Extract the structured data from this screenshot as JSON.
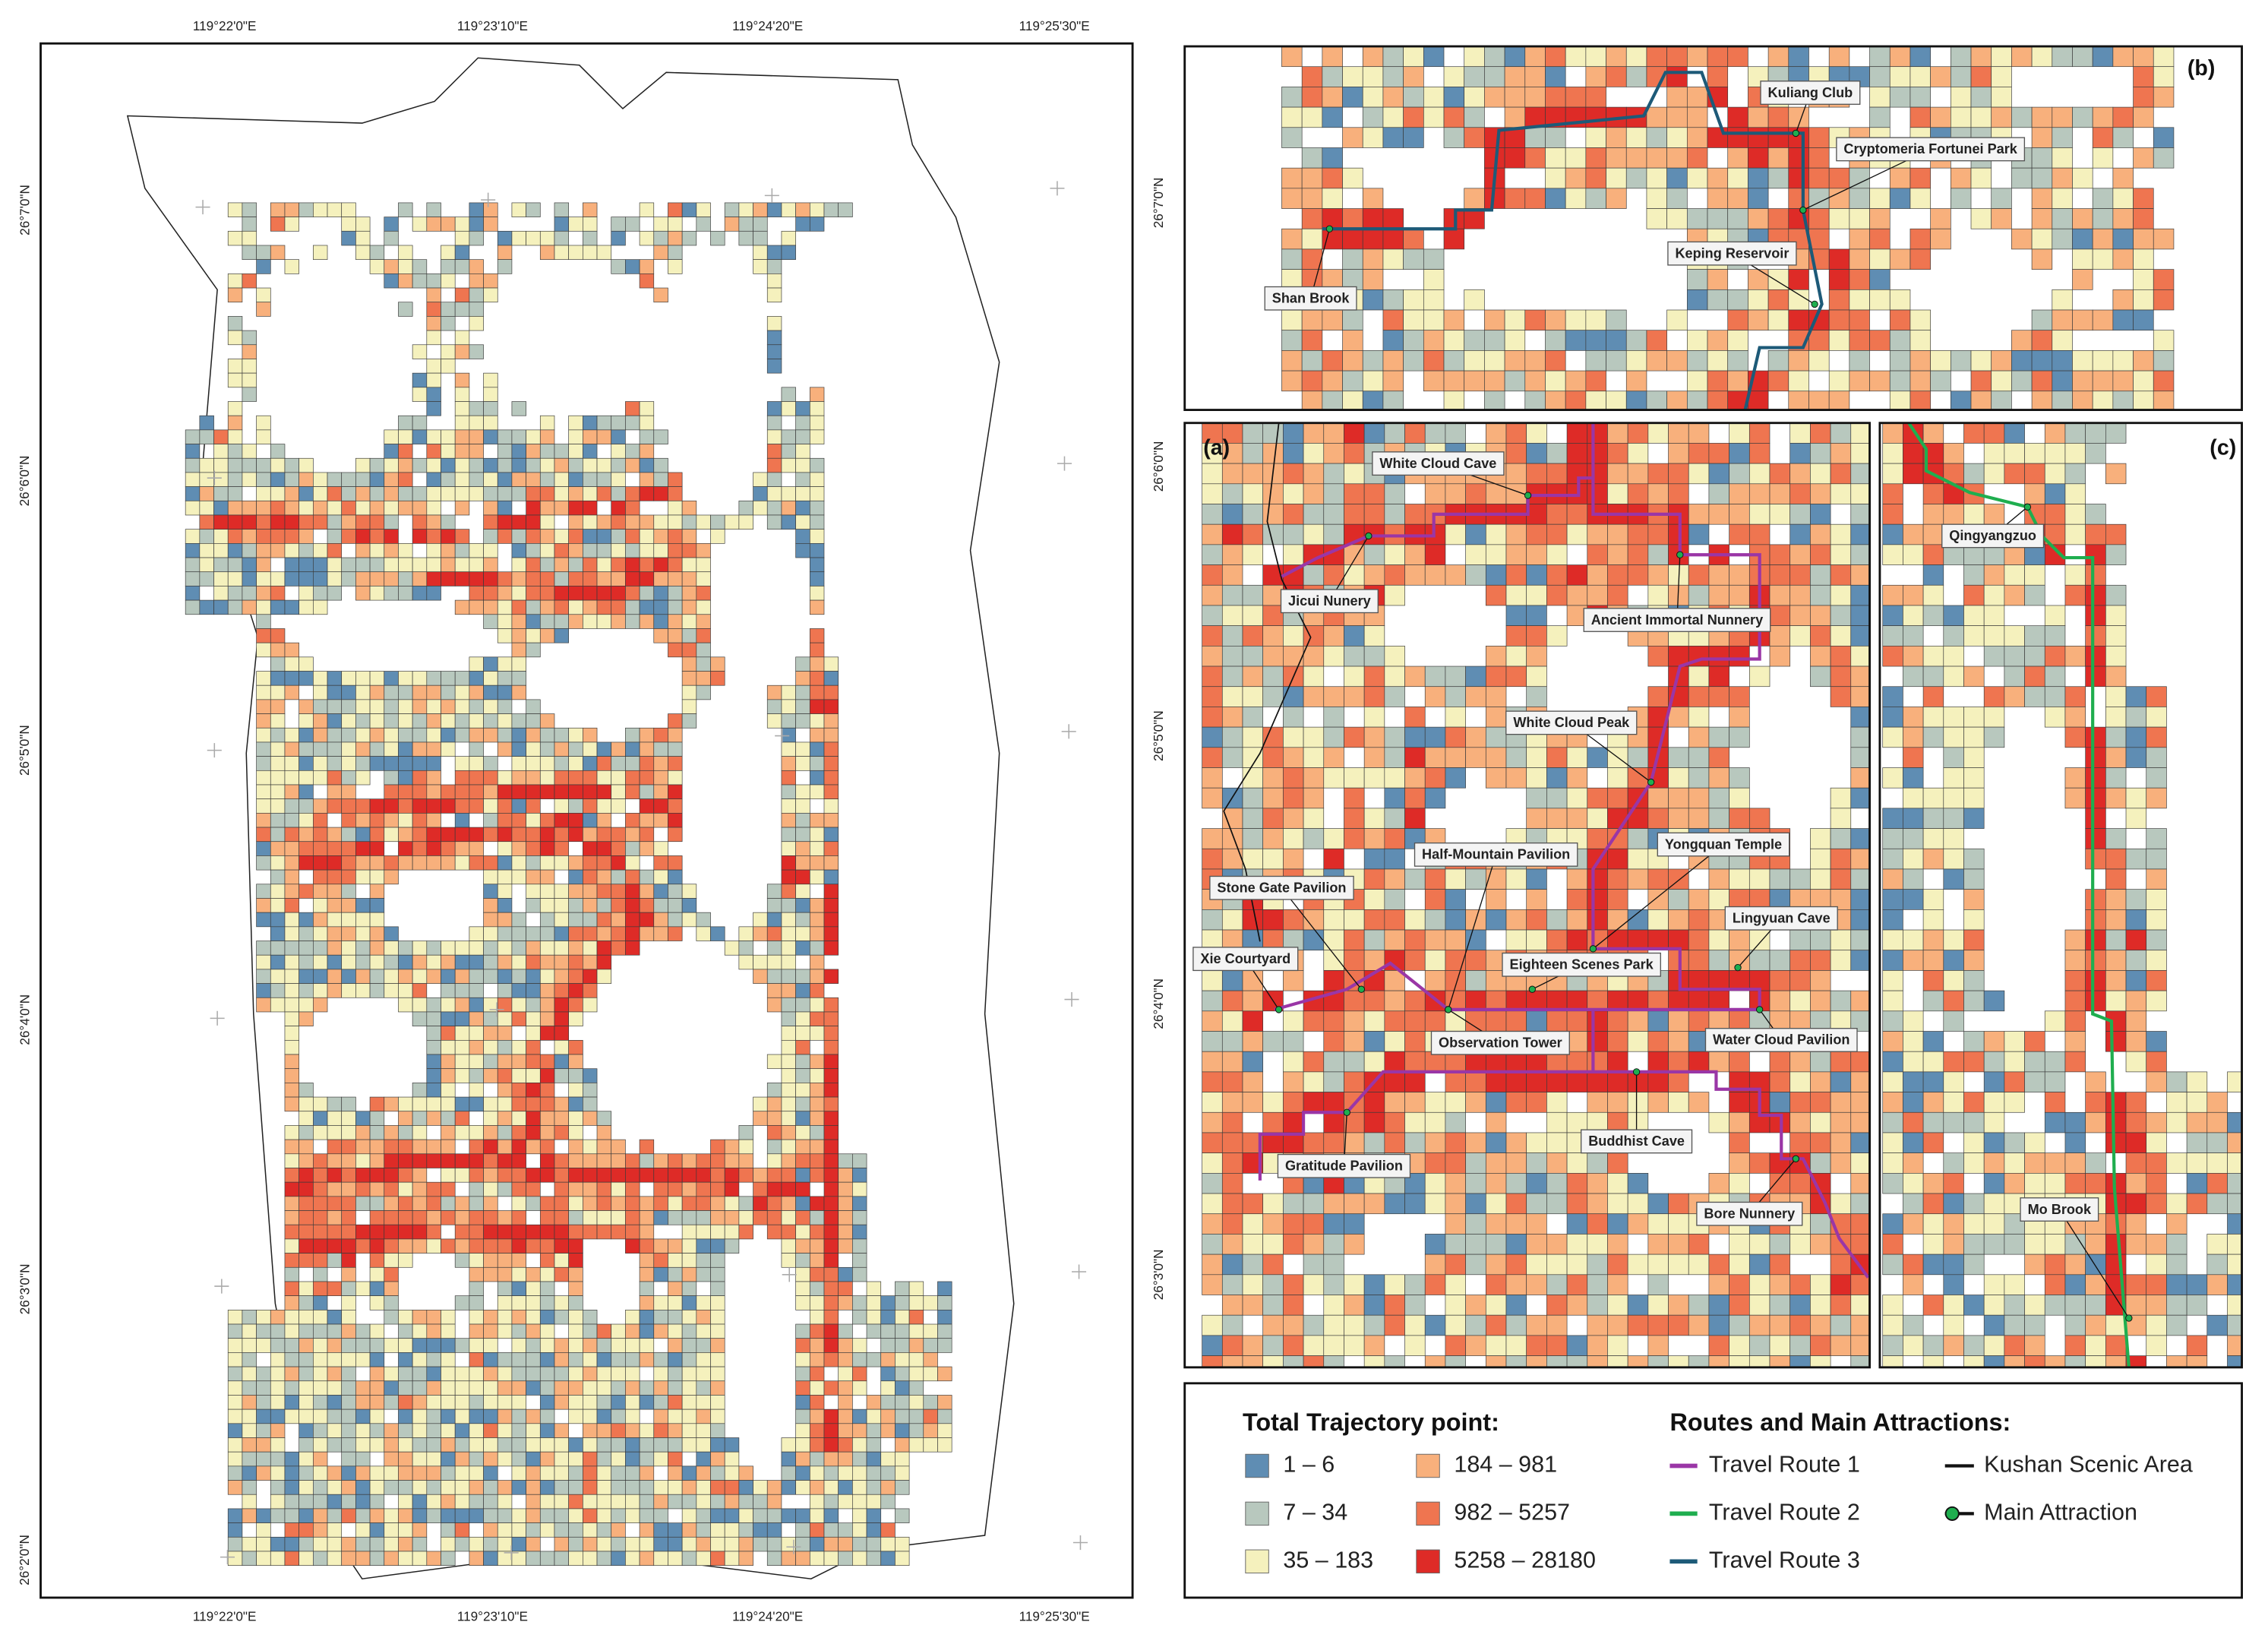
{
  "map": {
    "x_labels": [
      "119°22'0\"E",
      "119°23'10\"E",
      "119°24'20\"E",
      "119°25'30\"E"
    ],
    "y_labels": [
      "26°7'0\"N",
      "26°6'0\"N",
      "26°5'0\"N",
      "26°4'0\"N",
      "26°3'0\"N",
      "26°2'0\"N"
    ]
  },
  "panels": {
    "b": {
      "label": "(b)",
      "y_labels": [
        "26°7'0\"N"
      ],
      "attractions": [
        "Kuliang Club",
        "Cryptomeria Fortunei Park",
        "Keping Reservoir",
        "Shan Brook"
      ]
    },
    "a": {
      "label": "(a)",
      "y_labels": [
        "26°6'0\"N",
        "26°5'0\"N",
        "26°4'0\"N",
        "26°3'0\"N"
      ],
      "attractions": [
        "White Cloud Cave",
        "Jicui Nunery",
        "Ancient Immortal Nunnery",
        "White Cloud Peak",
        "Yongquan Temple",
        "Half-Mountain Pavilion",
        "Stone Gate Pavilion",
        "Lingyuan Cave",
        "Xie Courtyard",
        "Eighteen Scenes Park",
        "Observation Tower",
        "Water Cloud Pavilion",
        "Buddhist Cave",
        "Gratitude Pavilion",
        "Bore Nunnery"
      ]
    },
    "c": {
      "label": "(c)",
      "attractions": [
        "Qingyangzuo",
        "Mo Brook"
      ]
    }
  },
  "legend": {
    "classes_title": "Total Trajectory point:",
    "classes": [
      {
        "label": "1 – 6",
        "color": "#5f8db3"
      },
      {
        "label": "7 – 34",
        "color": "#b8c8be"
      },
      {
        "label": "35 – 183",
        "color": "#f5f1bd"
      },
      {
        "label": "184 – 981",
        "color": "#f8b07c"
      },
      {
        "label": "982 – 5257",
        "color": "#ef7550"
      },
      {
        "label": "5258 – 28180",
        "color": "#de2b27"
      }
    ],
    "routes_title": "Routes and Main Attractions:",
    "routes": [
      {
        "label": "Travel Route 1",
        "color": "#9a36a6"
      },
      {
        "label": "Travel Route 2",
        "color": "#1fae4f"
      },
      {
        "label": "Travel Route 3",
        "color": "#1d5a78"
      }
    ],
    "symbols": [
      {
        "label": "Kushan Scenic Area",
        "color": "#111111"
      },
      {
        "label": "Main Attraction",
        "color": "#1fae4f"
      }
    ]
  }
}
